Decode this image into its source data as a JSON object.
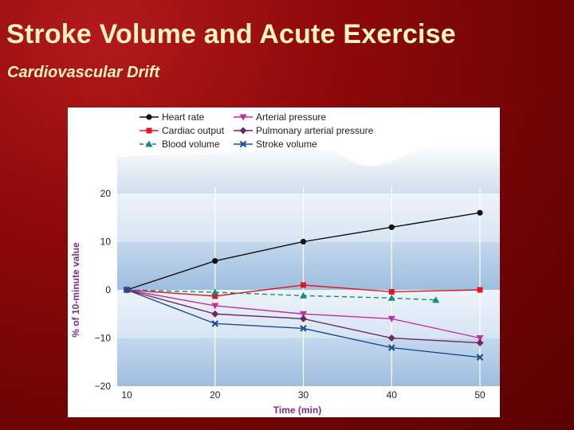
{
  "slide": {
    "title": "Stroke Volume and Acute Exercise",
    "subtitle": "Cardiovascular Drift"
  },
  "colors": {
    "background": "#8e0909",
    "title_text": "#fbf3c2",
    "axis_title": "#7a2e86",
    "band_light": "#e3edf7",
    "band_dark": "#a9c5e2"
  },
  "chart_data": {
    "type": "line",
    "title": "",
    "xlabel": "Time (min)",
    "ylabel": "% of 10-minute value",
    "x": [
      10,
      20,
      30,
      40,
      50
    ],
    "xticks": [
      "10",
      "20",
      "30",
      "40",
      "50"
    ],
    "yticks": [
      "20",
      "10",
      "0",
      "−10",
      "−20"
    ],
    "xlim": [
      10,
      50
    ],
    "ylim": [
      -20,
      20
    ],
    "grid": "vertical",
    "legend_position": "top",
    "series": [
      {
        "name": "Heart rate",
        "color": "#111111",
        "marker": "circle",
        "dash": "solid",
        "points": [
          [
            10,
            0
          ],
          [
            20,
            6
          ],
          [
            30,
            10
          ],
          [
            40,
            13
          ],
          [
            50,
            16
          ]
        ]
      },
      {
        "name": "Cardiac output",
        "color": "#e3171b",
        "marker": "square",
        "dash": "solid",
        "points": [
          [
            10,
            0
          ],
          [
            20,
            -1.3
          ],
          [
            30,
            1
          ],
          [
            40,
            -0.4
          ],
          [
            50,
            0
          ]
        ]
      },
      {
        "name": "Blood volume",
        "color": "#138a80",
        "marker": "triangle-up",
        "dash": "dashed",
        "points": [
          [
            10,
            0
          ],
          [
            20,
            -0.5
          ],
          [
            30,
            -1.2
          ],
          [
            40,
            -1.7
          ],
          [
            45,
            -2.1
          ]
        ]
      },
      {
        "name": "Arterial pressure",
        "color": "#c02fa0",
        "marker": "triangle-down",
        "dash": "solid",
        "points": [
          [
            10,
            0
          ],
          [
            20,
            -3.3
          ],
          [
            30,
            -5
          ],
          [
            40,
            -6
          ],
          [
            50,
            -10
          ]
        ]
      },
      {
        "name": "Pulmonary arterial pressure",
        "color": "#6a2a63",
        "marker": "diamond",
        "dash": "solid",
        "points": [
          [
            10,
            0
          ],
          [
            20,
            -5
          ],
          [
            30,
            -6
          ],
          [
            40,
            -10
          ],
          [
            50,
            -11
          ]
        ]
      },
      {
        "name": "Stroke volume",
        "color": "#1b4e9a",
        "marker": "x",
        "dash": "solid",
        "points": [
          [
            10,
            0
          ],
          [
            20,
            -7
          ],
          [
            30,
            -8
          ],
          [
            40,
            -12
          ],
          [
            50,
            -14
          ]
        ]
      }
    ]
  }
}
